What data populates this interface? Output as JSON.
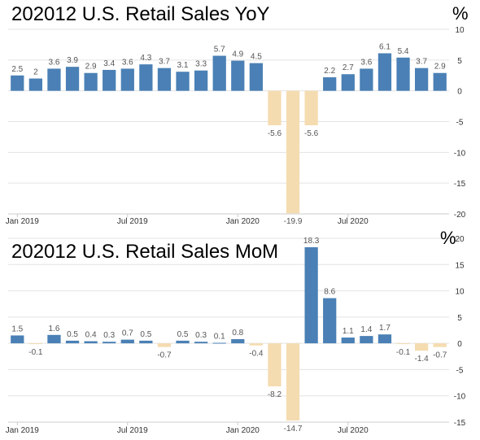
{
  "colors": {
    "positive": "#4a80b5",
    "negative": "#f5dcb0",
    "grid": "#e3e3e3",
    "axis": "#cccccc"
  },
  "chart_data": [
    {
      "type": "bar",
      "title": "202012 U.S. Retail Sales  YoY",
      "unit": "%",
      "categories": [
        "Jan 2019",
        "Feb 2019",
        "Mar 2019",
        "Apr 2019",
        "May 2019",
        "Jun 2019",
        "Jul 2019",
        "Aug 2019",
        "Sep 2019",
        "Oct 2019",
        "Nov 2019",
        "Dec 2019",
        "Jan 2020",
        "Feb 2020",
        "Mar 2020",
        "Apr 2020",
        "May 2020",
        "Jun 2020",
        "Jul 2020",
        "Aug 2020",
        "Sep 2020",
        "Oct 2020",
        "Nov 2020",
        "Dec 2020"
      ],
      "values": [
        2.5,
        2,
        3.6,
        3.9,
        2.9,
        3.4,
        3.6,
        4.3,
        3.7,
        3.1,
        3.3,
        5.7,
        4.9,
        4.5,
        -5.6,
        -19.9,
        -5.6,
        2.2,
        2.7,
        3.6,
        6.1,
        5.4,
        3.7,
        2.9
      ],
      "data_labels": [
        "2.5",
        "2",
        "3.6",
        "3.9",
        "2.9",
        "3.4",
        "3.6",
        "4.3",
        "3.7",
        "3.1",
        "3.3",
        "5.7",
        "4.9",
        "4.5",
        "-5.6",
        "-19.9",
        "-5.6",
        "2.2",
        "2.7",
        "3.6",
        "6.1",
        "5.4",
        "3.7",
        "2.9"
      ],
      "x_tick_labels": [
        {
          "index": 0,
          "label": "Jan 2019"
        },
        {
          "index": 6,
          "label": "Jul 2019"
        },
        {
          "index": 12,
          "label": "Jan 2020"
        },
        {
          "index": 18,
          "label": "Jul 2020"
        }
      ],
      "y_ticks": [
        "10",
        "5",
        "0",
        "-5",
        "-10",
        "-15",
        "-20"
      ],
      "ylim": [
        -20,
        10
      ],
      "grid": true,
      "y_axis_position": "right"
    },
    {
      "type": "bar",
      "title": "202012 U.S. Retail Sales MoM",
      "unit": "%",
      "categories": [
        "Jan 2019",
        "Feb 2019",
        "Mar 2019",
        "Apr 2019",
        "May 2019",
        "Jun 2019",
        "Jul 2019",
        "Aug 2019",
        "Sep 2019",
        "Oct 2019",
        "Nov 2019",
        "Dec 2019",
        "Jan 2020",
        "Feb 2020",
        "Mar 2020",
        "Apr 2020",
        "May 2020",
        "Jun 2020",
        "Jul 2020",
        "Aug 2020",
        "Sep 2020",
        "Oct 2020",
        "Nov 2020",
        "Dec 2020"
      ],
      "values": [
        1.5,
        -0.1,
        1.6,
        0.5,
        0.4,
        0.3,
        0.7,
        0.5,
        -0.7,
        0.5,
        0.3,
        0.1,
        0.8,
        -0.4,
        -8.2,
        -14.7,
        18.3,
        8.6,
        1.1,
        1.4,
        1.7,
        -0.1,
        -1.4,
        -0.7
      ],
      "data_labels": [
        "1.5",
        "-0.1",
        "1.6",
        "0.5",
        "0.4",
        "0.3",
        "0.7",
        "0.5",
        "-0.7",
        "0.5",
        "0.3",
        "0.1",
        "0.8",
        "-0.4",
        "-8.2",
        "-14.7",
        "18.3",
        "8.6",
        "1.1",
        "1.4",
        "1.7",
        "-0.1",
        "-1.4",
        "-0.7"
      ],
      "x_tick_labels": [
        {
          "index": 0,
          "label": "Jan 2019"
        },
        {
          "index": 6,
          "label": "Jul 2019"
        },
        {
          "index": 12,
          "label": "Jan 2020"
        },
        {
          "index": 18,
          "label": "Jul 2020"
        }
      ],
      "y_ticks": [
        "20",
        "15",
        "10",
        "5",
        "0",
        "-5",
        "-10",
        "-15"
      ],
      "ylim": [
        -15,
        20
      ],
      "grid": true,
      "y_axis_position": "right"
    }
  ]
}
